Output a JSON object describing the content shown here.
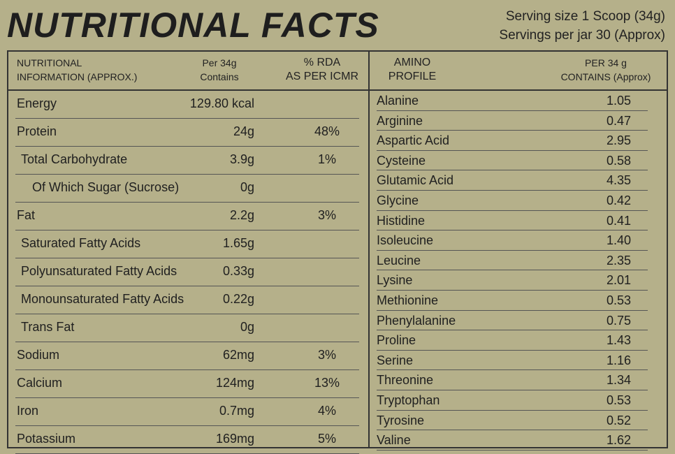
{
  "title": "NUTRITIONAL FACTS",
  "serving_size": "Serving size 1 Scoop (34g)",
  "servings_per_jar": "Servings per jar 30 (Approx)",
  "headers": {
    "col1_line1": "NUTRITIONAL",
    "col1_line2": "INFORMATION (APPROX.)",
    "col2_line1": "Per 34g",
    "col2_line2": "Contains",
    "col3_line1": "% RDA",
    "col3_line2": "AS PER ICMR",
    "col4_line1": "AMINO",
    "col4_line2": "PROFILE",
    "col5_line1": "PER 34 g",
    "col5_line2": "CONTAINS (Approx)"
  },
  "nutrients": [
    {
      "name": "Energy",
      "value": "129.80 kcal",
      "rda": "",
      "indent": 0
    },
    {
      "name": "Protein",
      "value": "24g",
      "rda": "48%",
      "indent": 0
    },
    {
      "name": "Total Carbohydrate",
      "value": "3.9g",
      "rda": "1%",
      "indent": 1
    },
    {
      "name": "Of Which Sugar (Sucrose)",
      "value": "0g",
      "rda": "",
      "indent": 2
    },
    {
      "name": "Fat",
      "value": "2.2g",
      "rda": "3%",
      "indent": 0
    },
    {
      "name": "Saturated Fatty Acids",
      "value": "1.65g",
      "rda": "",
      "indent": 1
    },
    {
      "name": "Polyunsaturated Fatty Acids",
      "value": "0.33g",
      "rda": "",
      "indent": 1
    },
    {
      "name": "Monounsaturated Fatty Acids",
      "value": "0.22g",
      "rda": "",
      "indent": 1
    },
    {
      "name": "Trans Fat",
      "value": "0g",
      "rda": "",
      "indent": 1
    },
    {
      "name": "Sodium",
      "value": "62mg",
      "rda": "3%",
      "indent": 0
    },
    {
      "name": "Calcium",
      "value": "124mg",
      "rda": "13%",
      "indent": 0
    },
    {
      "name": "Iron",
      "value": "0.7mg",
      "rda": "4%",
      "indent": 0
    },
    {
      "name": "Potassium",
      "value": "169mg",
      "rda": "5%",
      "indent": 0
    }
  ],
  "amino_acids": [
    {
      "name": "Alanine",
      "value": "1.05"
    },
    {
      "name": "Arginine",
      "value": "0.47"
    },
    {
      "name": "Aspartic Acid",
      "value": "2.95"
    },
    {
      "name": "Cysteine",
      "value": "0.58"
    },
    {
      "name": "Glutamic Acid",
      "value": "4.35"
    },
    {
      "name": "Glycine",
      "value": "0.42"
    },
    {
      "name": "Histidine",
      "value": "0.41"
    },
    {
      "name": "Isoleucine",
      "value": "1.40"
    },
    {
      "name": "Leucine",
      "value": "2.35"
    },
    {
      "name": "Lysine",
      "value": "2.01"
    },
    {
      "name": "Methionine",
      "value": "0.53"
    },
    {
      "name": "Phenylalanine",
      "value": "0.75"
    },
    {
      "name": "Proline",
      "value": "1.43"
    },
    {
      "name": "Serine",
      "value": "1.16"
    },
    {
      "name": "Threonine",
      "value": "1.34"
    },
    {
      "name": "Tryptophan",
      "value": "0.53"
    },
    {
      "name": "Tyrosine",
      "value": "0.52"
    },
    {
      "name": "Valine",
      "value": "1.62"
    }
  ]
}
